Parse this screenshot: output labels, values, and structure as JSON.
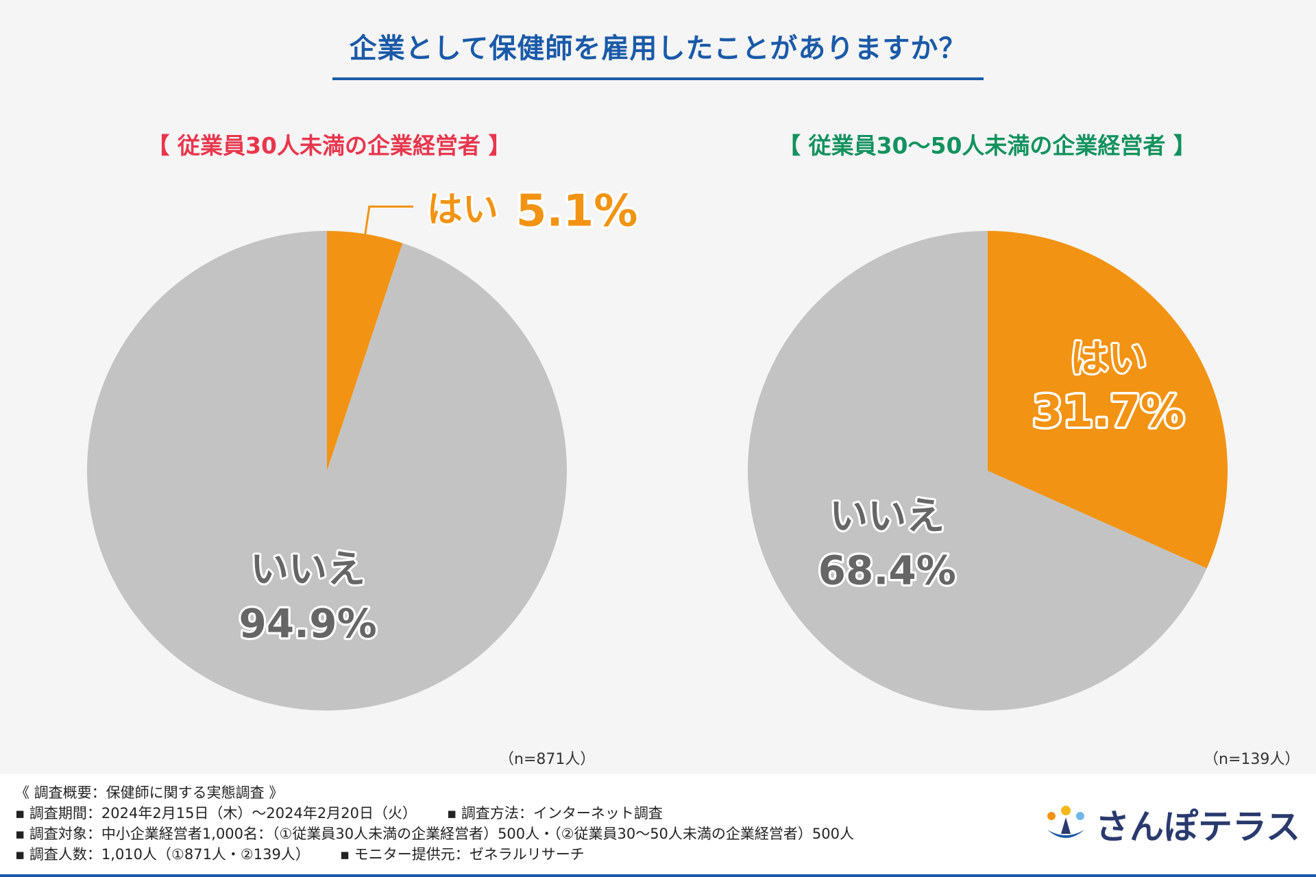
{
  "title": "企業として保健師を雇用したことがありますか？",
  "colors": {
    "title": "#1a5aa8",
    "yes": "#f29313",
    "no": "#c3c3c3",
    "left_panel": "#e8364d",
    "right_panel": "#12925e"
  },
  "chart_data": [
    {
      "type": "pie",
      "title": "【 従業員30人未満の企業経営者 】",
      "slices": [
        {
          "label": "はい",
          "value": 5.1,
          "display": "5.1%"
        },
        {
          "label": "いいえ",
          "value": 94.9,
          "display": "94.9%"
        }
      ],
      "n": "（n=871人）"
    },
    {
      "type": "pie",
      "title": "【 従業員30～50人未満の企業経営者 】",
      "slices": [
        {
          "label": "はい",
          "value": 31.7,
          "display": "31.7%"
        },
        {
          "label": "いいえ",
          "value": 68.4,
          "display": "68.4%"
        }
      ],
      "n": "（n=139人）"
    }
  ],
  "footer": {
    "overview": "《 調査概要：保健師に関する実態調査 》",
    "period": "▪ 調査期間：2024年2月15日（木）～2024年2月20日（火）",
    "method": "▪ 調査方法：インターネット調査",
    "target": "▪ 調査対象：中小企業経営者1,000名：（①従業員30人未満の企業経営者）500人・（②従業員30～50人未満の企業経営者）500人",
    "count": "▪ 調査人数：1,010人（①871人・②139人）",
    "provider": "▪ モニター提供元：ゼネラルリサーチ"
  },
  "logo": {
    "text": "さんぽテラス"
  }
}
